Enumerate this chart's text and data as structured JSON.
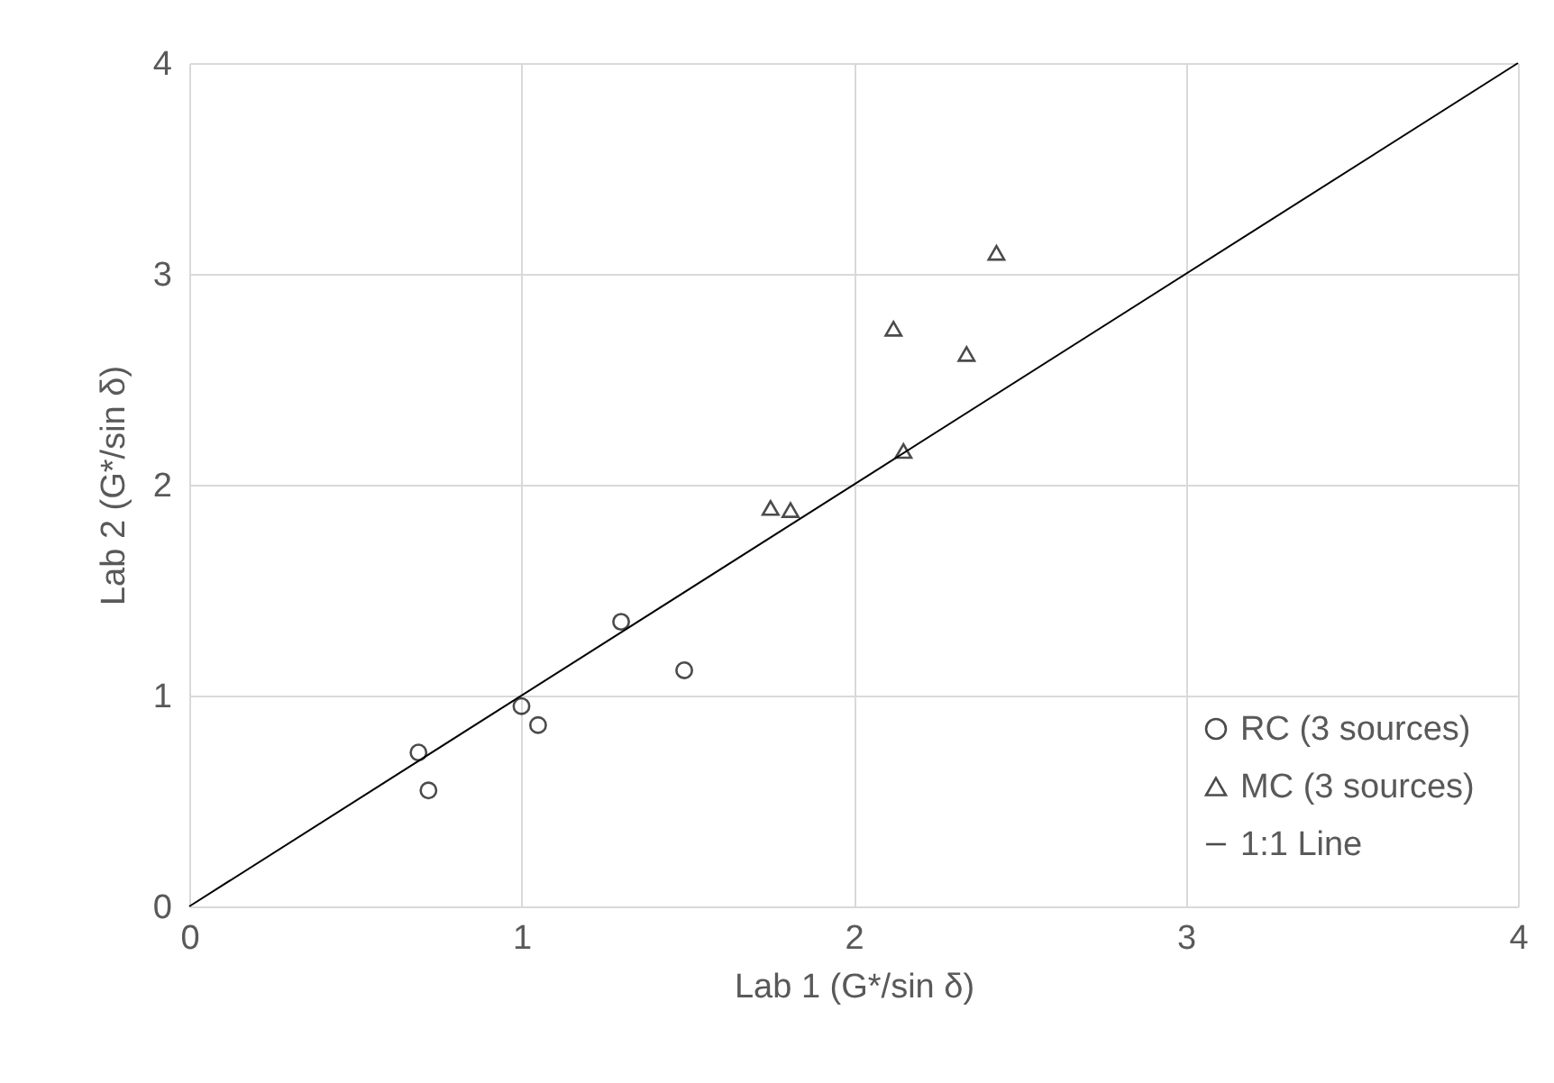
{
  "chart_data": {
    "type": "scatter",
    "xlabel": "Lab 1 (G*/sin δ)",
    "ylabel": "Lab 2 (G*/sin δ)",
    "xlim": [
      0,
      4
    ],
    "ylim": [
      0,
      4
    ],
    "xticks": [
      0,
      1,
      2,
      3,
      4
    ],
    "yticks": [
      0,
      1,
      2,
      3,
      4
    ],
    "grid": true,
    "legend": "bottom right",
    "series": [
      {
        "name": "RC (3 sources)",
        "color": "#000000",
        "marker": "circle",
        "x": [
          0.69,
          0.72,
          1.0,
          1.05,
          1.3,
          1.49
        ],
        "values": [
          0.73,
          0.55,
          0.95,
          0.86,
          1.35,
          1.12
        ]
      },
      {
        "name": "MC (3 sources)",
        "color": "#000000",
        "marker": "triangle",
        "x": [
          1.75,
          1.81,
          2.12,
          2.15,
          2.34,
          2.43
        ],
        "values": [
          1.89,
          1.88,
          2.74,
          2.16,
          2.62,
          3.1
        ]
      },
      {
        "name": "1:1 Line",
        "type": "line",
        "color": "#000000",
        "x": [
          0,
          4
        ],
        "values": [
          0,
          4
        ]
      }
    ]
  }
}
